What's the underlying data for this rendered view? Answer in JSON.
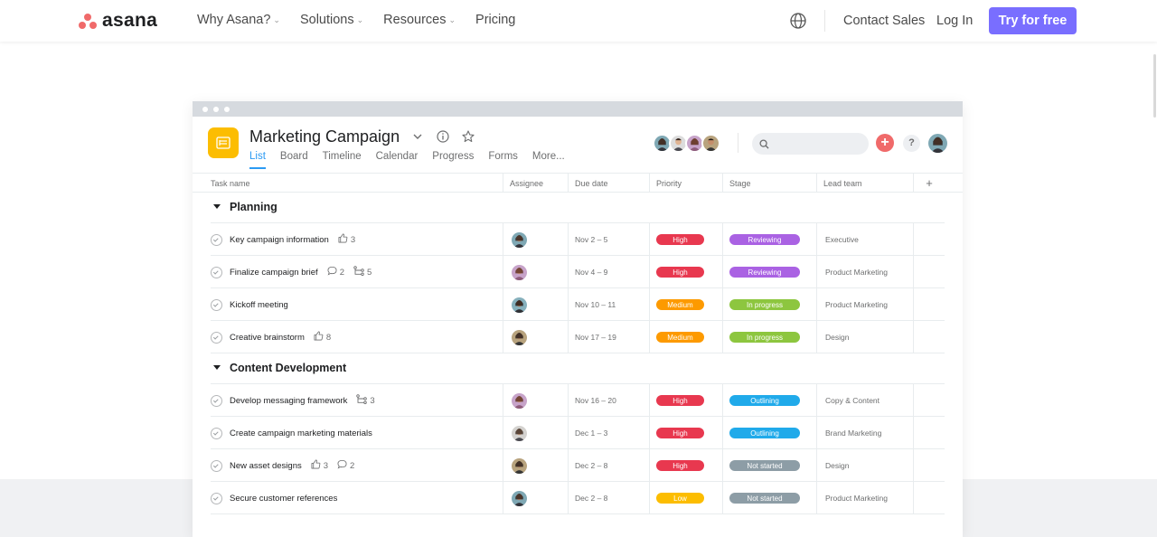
{
  "nav": {
    "logo_text": "asana",
    "links": [
      {
        "label": "Why Asana?",
        "has_dropdown": true
      },
      {
        "label": "Solutions",
        "has_dropdown": true
      },
      {
        "label": "Resources",
        "has_dropdown": true
      },
      {
        "label": "Pricing",
        "has_dropdown": false
      }
    ],
    "contact_sales": "Contact Sales",
    "login": "Log In",
    "try_button": "Try for free"
  },
  "colors": {
    "brand_coral": "#f06a6a",
    "cta_purple": "#796eff",
    "tab_active": "#2b9af3",
    "project_icon": "#fcbd01"
  },
  "project": {
    "title": "Marketing Campaign",
    "tabs": [
      "List",
      "Board",
      "Timeline",
      "Calendar",
      "Progress",
      "Forms",
      "More..."
    ],
    "active_tab": "List",
    "member_avatar_count": 4
  },
  "table": {
    "columns": [
      "Task name",
      "Assignee",
      "Due date",
      "Priority",
      "Stage",
      "Lead team",
      "+"
    ],
    "sections": [
      {
        "title": "Planning",
        "tasks": [
          {
            "name": "Key campaign information",
            "likes": "3",
            "comments": "",
            "subtasks": "",
            "due": "Nov 2 – 5",
            "priority": "High",
            "stage": "Reviewing",
            "team": "Executive",
            "avatar": "a1"
          },
          {
            "name": "Finalize campaign brief",
            "likes": "",
            "comments": "2",
            "subtasks": "5",
            "due": "Nov 4 – 9",
            "priority": "High",
            "stage": "Reviewing",
            "team": "Product Marketing",
            "avatar": "a2"
          },
          {
            "name": "Kickoff meeting",
            "likes": "",
            "comments": "",
            "subtasks": "",
            "due": "Nov 10 – 11",
            "priority": "Medium",
            "stage": "In progress",
            "team": "Product Marketing",
            "avatar": "a3"
          },
          {
            "name": "Creative brainstorm",
            "likes": "8",
            "comments": "",
            "subtasks": "",
            "due": "Nov 17 – 19",
            "priority": "Medium",
            "stage": "In progress",
            "team": "Design",
            "avatar": "a4"
          }
        ]
      },
      {
        "title": "Content Development",
        "tasks": [
          {
            "name": "Develop messaging framework",
            "likes": "",
            "comments": "",
            "subtasks": "3",
            "due": "Nov 16 – 20",
            "priority": "High",
            "stage": "Outlining",
            "team": "Copy & Content",
            "avatar": "a2"
          },
          {
            "name": "Create campaign marketing materials",
            "likes": "",
            "comments": "",
            "subtasks": "",
            "due": "Dec 1 – 3",
            "priority": "High",
            "stage": "Outlining",
            "team": "Brand Marketing",
            "avatar": "a5"
          },
          {
            "name": "New asset designs",
            "likes": "3",
            "comments": "2",
            "subtasks": "",
            "due": "Dec 2 – 8",
            "priority": "High",
            "stage": "Not started",
            "team": "Design",
            "avatar": "a4"
          },
          {
            "name": "Secure customer references",
            "likes": "",
            "comments": "",
            "subtasks": "",
            "due": "Dec 2 – 8",
            "priority": "Low",
            "stage": "Not started",
            "team": "Product Marketing",
            "avatar": "a1"
          }
        ]
      }
    ],
    "priority_colors": {
      "High": "#e8384f",
      "Medium": "#fd9a00",
      "Low": "#fcbd01"
    },
    "stage_colors": {
      "Reviewing": "#aa62e3",
      "In progress": "#8dc63f",
      "Outlining": "#20aaea",
      "Not started": "#8d9da6"
    }
  }
}
